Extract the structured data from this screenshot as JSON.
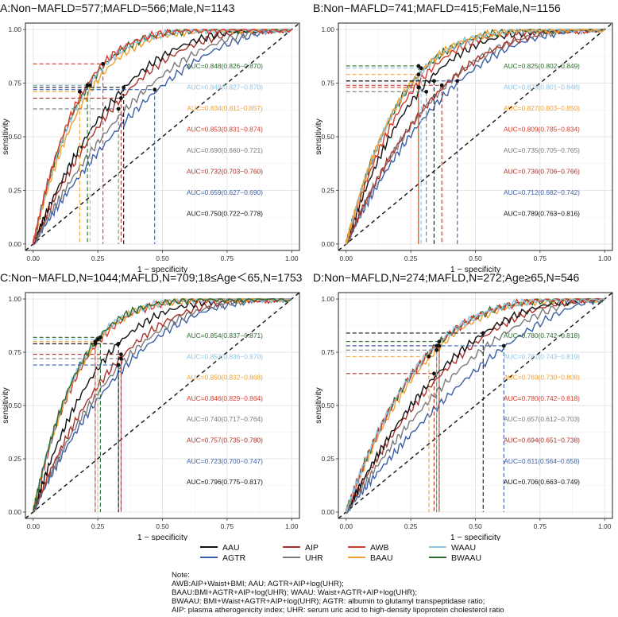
{
  "chart_data": [
    {
      "type": "line",
      "title": "A:Non−MAFLD=577;MAFLD=566;Male,N=1143",
      "xlabel": "1 − specificity",
      "ylabel": "sensitivity",
      "xlim": [
        0,
        1
      ],
      "ylim": [
        0,
        1
      ],
      "xticks": [
        "0.00",
        "0.25",
        "0.50",
        "0.75",
        "1.00"
      ],
      "yticks": [
        "0.00",
        "0.25",
        "0.50",
        "0.75",
        "1.00"
      ],
      "grid": true,
      "series": [
        {
          "name": "BWAAU",
          "auc_label": "AUC=0.848(0.826−0.870)",
          "auc": 0.848,
          "cutoff": [
            0.21,
            0.74
          ]
        },
        {
          "name": "WAAU",
          "auc_label": "AUC=0.848(0.827−0.870)",
          "auc": 0.848,
          "cutoff": [
            0.22,
            0.74
          ]
        },
        {
          "name": "BAAU",
          "auc_label": "AUC=0.834(0.811−0.857)",
          "auc": 0.834,
          "cutoff": [
            0.18,
            0.71
          ]
        },
        {
          "name": "AWB",
          "auc_label": "AUC=0.853(0.831−0.874)",
          "auc": 0.853,
          "cutoff": [
            0.27,
            0.84
          ]
        },
        {
          "name": "UHR",
          "auc_label": "AUC=0.690(0.660−0.721)",
          "auc": 0.69,
          "cutoff": [
            0.33,
            0.63
          ]
        },
        {
          "name": "AIP",
          "auc_label": "AUC=0.732(0.703−0.760)",
          "auc": 0.732,
          "cutoff": [
            0.34,
            0.68
          ]
        },
        {
          "name": "AGTR",
          "auc_label": "AUC=0.659(0.627−0.690)",
          "auc": 0.659,
          "cutoff": [
            0.47,
            0.72
          ]
        },
        {
          "name": "AAU",
          "auc_label": "AUC=0.750(0.722−0.778)",
          "auc": 0.75,
          "cutoff": [
            0.35,
            0.73
          ]
        }
      ]
    },
    {
      "type": "line",
      "title": "B:Non−MAFLD=741;MAFLD=415;FeMale,N=1156",
      "xlabel": "1 − specificity",
      "ylabel": "sensitivity",
      "xlim": [
        0,
        1
      ],
      "ylim": [
        0,
        1
      ],
      "xticks": [
        "0.00",
        "0.25",
        "0.50",
        "0.75",
        "1.00"
      ],
      "yticks": [
        "0.00",
        "0.25",
        "0.50",
        "0.75",
        "1.00"
      ],
      "grid": true,
      "series": [
        {
          "name": "BWAAU",
          "auc_label": "AUC=0.825(0.802−0.849)",
          "auc": 0.825,
          "cutoff": [
            0.28,
            0.83
          ]
        },
        {
          "name": "WAAU",
          "auc_label": "AUC=0.825(0.801−0.848)",
          "auc": 0.825,
          "cutoff": [
            0.29,
            0.82
          ]
        },
        {
          "name": "BAAU",
          "auc_label": "AUC=0.827(0.803−0.850)",
          "auc": 0.827,
          "cutoff": [
            0.28,
            0.79
          ]
        },
        {
          "name": "AWB",
          "auc_label": "AUC=0.809(0.785−0.834)",
          "auc": 0.809,
          "cutoff": [
            0.28,
            0.73
          ]
        },
        {
          "name": "UHR",
          "auc_label": "AUC=0.735(0.705−0.765)",
          "auc": 0.735,
          "cutoff": [
            0.31,
            0.71
          ]
        },
        {
          "name": "AIP",
          "auc_label": "AUC=0.736(0.706−0.766)",
          "auc": 0.736,
          "cutoff": [
            0.37,
            0.74
          ]
        },
        {
          "name": "AGTR",
          "auc_label": "AUC=0.712(0.682−0.742)",
          "auc": 0.712,
          "cutoff": [
            0.43,
            0.76
          ]
        },
        {
          "name": "AAU",
          "auc_label": "AUC=0.789(0.763−0.816)",
          "auc": 0.789,
          "cutoff": [
            0.34,
            0.76
          ]
        }
      ]
    },
    {
      "type": "line",
      "title": "C:Non−MAFLD,N=1044;MAFLD,N=709;18≤Age＜65,N=1753",
      "xlabel": "1 − specificity",
      "ylabel": "sensitivity",
      "xlim": [
        0,
        1
      ],
      "ylim": [
        0,
        1
      ],
      "xticks": [
        "0.00",
        "0.25",
        "0.50",
        "0.75",
        "1.00"
      ],
      "yticks": [
        "0.00",
        "0.25",
        "0.50",
        "0.75",
        "1.00"
      ],
      "grid": true,
      "series": [
        {
          "name": "BWAAU",
          "auc_label": "AUC=0.854(0.837−0.871)",
          "auc": 0.854,
          "cutoff": [
            0.26,
            0.82
          ]
        },
        {
          "name": "WAAU",
          "auc_label": "AUC=0.853(0.836−0.870)",
          "auc": 0.853,
          "cutoff": [
            0.25,
            0.81
          ]
        },
        {
          "name": "BAAU",
          "auc_label": "AUC=0.850(0.832−0.868)",
          "auc": 0.85,
          "cutoff": [
            0.24,
            0.8
          ]
        },
        {
          "name": "AWB",
          "auc_label": "AUC=0.846(0.829−0.864)",
          "auc": 0.846,
          "cutoff": [
            0.24,
            0.79
          ]
        },
        {
          "name": "UHR",
          "auc_label": "AUC=0.740(0.717−0.764)",
          "auc": 0.74,
          "cutoff": [
            0.34,
            0.72
          ]
        },
        {
          "name": "AIP",
          "auc_label": "AUC=0.757(0.735−0.780)",
          "auc": 0.757,
          "cutoff": [
            0.34,
            0.74
          ]
        },
        {
          "name": "AGTR",
          "auc_label": "AUC=0.723(0.700−0.747)",
          "auc": 0.723,
          "cutoff": [
            0.33,
            0.69
          ]
        },
        {
          "name": "AAU",
          "auc_label": "AUC=0.796(0.775−0.817)",
          "auc": 0.796,
          "cutoff": [
            0.33,
            0.79
          ]
        }
      ]
    },
    {
      "type": "line",
      "title": "D:Non−MAFLD,N=274;MAFLD,N=272;Age≥65,N=546",
      "xlabel": "1 − specificity",
      "ylabel": "sensitivity",
      "xlim": [
        0,
        1
      ],
      "ylim": [
        0,
        1
      ],
      "xticks": [
        "0.00",
        "0.25",
        "0.50",
        "0.75",
        "1.00"
      ],
      "yticks": [
        "0.00",
        "0.25",
        "0.50",
        "0.75",
        "1.00"
      ],
      "grid": true,
      "series": [
        {
          "name": "BWAAU",
          "auc_label": "AUC=0.780(0.742−0.818)",
          "auc": 0.78,
          "cutoff": [
            0.36,
            0.8
          ]
        },
        {
          "name": "WAAU",
          "auc_label": "AUC=0.781(0.743−0.819)",
          "auc": 0.781,
          "cutoff": [
            0.35,
            0.78
          ]
        },
        {
          "name": "BAAU",
          "auc_label": "AUC=0.769(0.730−0.808)",
          "auc": 0.769,
          "cutoff": [
            0.32,
            0.73
          ]
        },
        {
          "name": "AWB",
          "auc_label": "AUC=0.780(0.742−0.818)",
          "auc": 0.78,
          "cutoff": [
            0.36,
            0.78
          ]
        },
        {
          "name": "UHR",
          "auc_label": "AUC=0.657(0.612−0.703)",
          "auc": 0.657,
          "cutoff": [
            0.35,
            0.76
          ]
        },
        {
          "name": "AIP",
          "auc_label": "AUC=0.694(0.651−0.738)",
          "auc": 0.694,
          "cutoff": [
            0.34,
            0.65
          ]
        },
        {
          "name": "AGTR",
          "auc_label": "AUC=0.611(0.564−0.658)",
          "auc": 0.611,
          "cutoff": [
            0.61,
            0.78
          ]
        },
        {
          "name": "AAU",
          "auc_label": "AUC=0.706(0.663−0.749)",
          "auc": 0.706,
          "cutoff": [
            0.53,
            0.84
          ]
        }
      ]
    }
  ],
  "series_colors": {
    "BWAAU": "#2d6a2d",
    "WAAU": "#8fc3e3",
    "BAAU": "#f0a030",
    "AWB": "#d63a2a",
    "UHR": "#7a7a7a",
    "AIP": "#a8322b",
    "AGTR": "#3a5fa8",
    "AAU": "#111111"
  },
  "legend": {
    "columns": [
      [
        {
          "name": "AAU"
        },
        {
          "name": "AGTR"
        }
      ],
      [
        {
          "name": "AIP"
        },
        {
          "name": "UHR"
        }
      ],
      [
        {
          "name": "AWB"
        },
        {
          "name": "BAAU"
        }
      ],
      [
        {
          "name": "WAAU"
        },
        {
          "name": "BWAAU"
        }
      ]
    ]
  },
  "note": {
    "title": "Note:",
    "lines": [
      "AWB:AIP+Waist+BMI; AAU: AGTR+AIP+log(UHR);",
      "BAAU:BMI+AGTR+AIP+log(UHR); WAAU: Waist+AGTR+AIP+log(UHR);",
      "BWAAU: BMI+Waist+AGTR+AIP+log(UHR); AGTR: albumin to glutamyl transpeptidase ratio;",
      "AIP: plasma atherogenicity index; UHR: serum uric acid to high-density lipoprotein cholesterol ratio"
    ]
  }
}
